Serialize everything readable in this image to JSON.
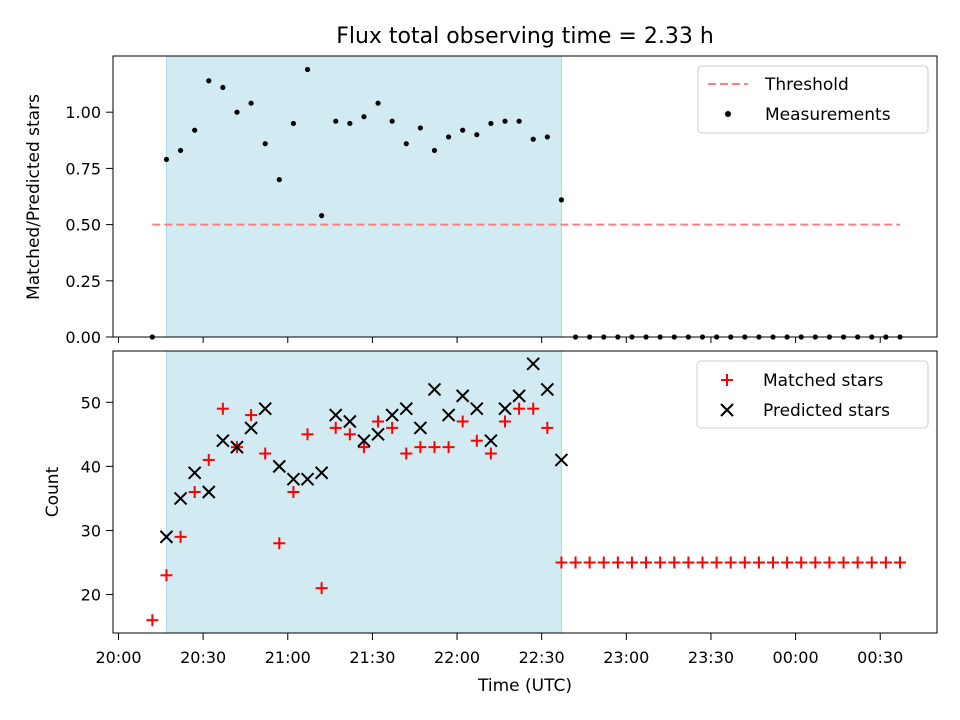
{
  "title": "Flux total observing time = 2.33 h",
  "chart_data": [
    {
      "type": "scatter",
      "panel": "top",
      "xlabel": "",
      "ylabel": "Matched/Predicted stars",
      "xlim": [
        "20:00",
        "00:40"
      ],
      "ylim": [
        0,
        1.25
      ],
      "yticks": [
        "0.00",
        "0.25",
        "0.50",
        "0.75",
        "1.00"
      ],
      "shaded_interval": [
        "20:17",
        "22:37"
      ],
      "shade_color": "#add8e6",
      "legend_position": "upper right",
      "threshold": {
        "name": "Threshold",
        "y": 0.5,
        "x_start": "20:12",
        "x_end": "00:37",
        "color": "#ff7f7f",
        "style": "dashed"
      },
      "series": [
        {
          "name": "Measurements",
          "marker": "dot",
          "color": "#000000",
          "x": [
            "20:12",
            "20:17",
            "20:22",
            "20:27",
            "20:32",
            "20:37",
            "20:42",
            "20:47",
            "20:52",
            "20:57",
            "21:02",
            "21:07",
            "21:12",
            "21:17",
            "21:22",
            "21:27",
            "21:32",
            "21:37",
            "21:42",
            "21:47",
            "21:52",
            "21:57",
            "22:02",
            "22:07",
            "22:12",
            "22:17",
            "22:22",
            "22:27",
            "22:32",
            "22:37",
            "22:42",
            "22:47",
            "22:52",
            "22:57",
            "23:02",
            "23:07",
            "23:12",
            "23:17",
            "23:22",
            "23:27",
            "23:32",
            "23:37",
            "23:42",
            "23:47",
            "23:52",
            "23:57",
            "00:02",
            "00:07",
            "00:12",
            "00:17",
            "00:22",
            "00:27",
            "00:32",
            "00:37"
          ],
          "y": [
            0.0,
            0.79,
            0.83,
            0.92,
            1.14,
            1.11,
            1.0,
            1.04,
            0.86,
            0.7,
            0.95,
            1.19,
            0.54,
            0.96,
            0.95,
            0.98,
            1.04,
            0.96,
            0.86,
            0.93,
            0.83,
            0.89,
            0.92,
            0.9,
            0.95,
            0.96,
            0.96,
            0.88,
            0.89,
            0.61,
            0.0,
            0.0,
            0.0,
            0.0,
            0.0,
            0.0,
            0.0,
            0.0,
            0.0,
            0.0,
            0.0,
            0.0,
            0.0,
            0.0,
            0.0,
            0.0,
            0.0,
            0.0,
            0.0,
            0.0,
            0.0,
            0.0,
            0.0,
            0.0
          ]
        }
      ]
    },
    {
      "type": "scatter",
      "panel": "bottom",
      "xlabel": "Time (UTC)",
      "ylabel": "Count",
      "xlim": [
        "20:00",
        "00:40"
      ],
      "ylim": [
        14,
        58
      ],
      "yticks": [
        "20",
        "30",
        "40",
        "50"
      ],
      "xticks": [
        "20:00",
        "20:30",
        "21:00",
        "21:30",
        "22:00",
        "22:30",
        "23:00",
        "23:30",
        "00:00",
        "00:30"
      ],
      "shaded_interval": [
        "20:17",
        "22:37"
      ],
      "shade_color": "#add8e6",
      "legend_position": "upper right",
      "series": [
        {
          "name": "Matched stars",
          "marker": "plus",
          "color": "#ff0000",
          "x": [
            "20:12",
            "20:17",
            "20:22",
            "20:27",
            "20:32",
            "20:37",
            "20:42",
            "20:47",
            "20:52",
            "20:57",
            "21:02",
            "21:07",
            "21:12",
            "21:17",
            "21:22",
            "21:27",
            "21:32",
            "21:37",
            "21:42",
            "21:47",
            "21:52",
            "21:57",
            "22:02",
            "22:07",
            "22:12",
            "22:17",
            "22:22",
            "22:27",
            "22:32",
            "22:37",
            "22:42",
            "22:47",
            "22:52",
            "22:57",
            "23:02",
            "23:07",
            "23:12",
            "23:17",
            "23:22",
            "23:27",
            "23:32",
            "23:37",
            "23:42",
            "23:47",
            "23:52",
            "23:57",
            "00:02",
            "00:07",
            "00:12",
            "00:17",
            "00:22",
            "00:27",
            "00:32",
            "00:37"
          ],
          "y": [
            16,
            23,
            29,
            36,
            41,
            49,
            43,
            48,
            42,
            28,
            36,
            45,
            21,
            46,
            45,
            43,
            47,
            46,
            42,
            43,
            43,
            43,
            47,
            44,
            42,
            47,
            49,
            49,
            46,
            25,
            25,
            25,
            25,
            25,
            25,
            25,
            25,
            25,
            25,
            25,
            25,
            25,
            25,
            25,
            25,
            25,
            25,
            25,
            25,
            25,
            25,
            25,
            25,
            25
          ]
        },
        {
          "name": "Predicted stars",
          "marker": "x",
          "color": "#000000",
          "x": [
            "20:17",
            "20:22",
            "20:27",
            "20:32",
            "20:37",
            "20:42",
            "20:47",
            "20:52",
            "20:57",
            "21:02",
            "21:07",
            "21:12",
            "21:17",
            "21:22",
            "21:27",
            "21:32",
            "21:37",
            "21:42",
            "21:47",
            "21:52",
            "21:57",
            "22:02",
            "22:07",
            "22:12",
            "22:17",
            "22:22",
            "22:27",
            "22:32",
            "22:37"
          ],
          "y": [
            29,
            35,
            39,
            36,
            44,
            43,
            46,
            49,
            40,
            38,
            38,
            39,
            48,
            47,
            44,
            45,
            48,
            49,
            46,
            52,
            48,
            51,
            49,
            44,
            49,
            51,
            56,
            52,
            41
          ]
        }
      ]
    }
  ]
}
